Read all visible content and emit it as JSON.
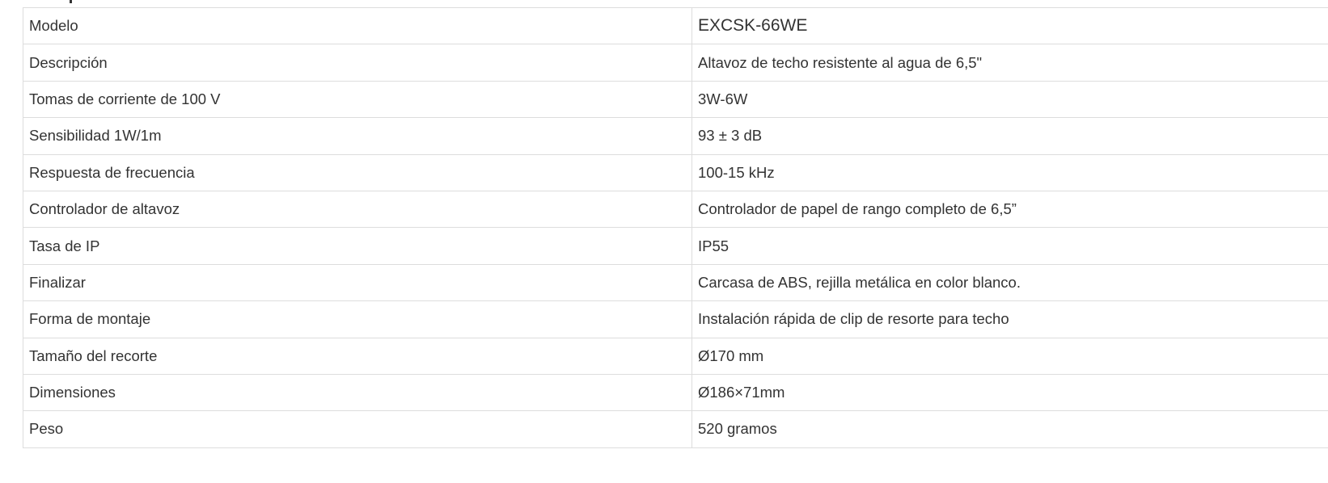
{
  "specs": [
    {
      "label": "Modelo",
      "value": "EXCSK-66WE"
    },
    {
      "label": "Descripción",
      "value": "Altavoz de techo resistente al agua de 6,5\""
    },
    {
      "label": "Tomas de corriente de 100 V",
      "value": "3W-6W"
    },
    {
      "label": "Sensibilidad 1W/1m",
      "value": "93 ± 3 dB"
    },
    {
      "label": "Respuesta de frecuencia",
      "value": "100-15 kHz"
    },
    {
      "label": "Controlador de altavoz",
      "value": "Controlador de papel de rango completo de 6,5”"
    },
    {
      "label": "Tasa de IP",
      "value": "IP55"
    },
    {
      "label": "Finalizar",
      "value": "Carcasa de ABS, rejilla metálica en color blanco."
    },
    {
      "label": "Forma de montaje",
      "value": "Instalación rápida de clip de resorte para techo"
    },
    {
      "label": "Tamaño del recorte",
      "value": "Ø170 mm"
    },
    {
      "label": "Dimensiones",
      "value": "Ø186×71mm"
    },
    {
      "label": "Peso",
      "value": "520 gramos"
    }
  ]
}
